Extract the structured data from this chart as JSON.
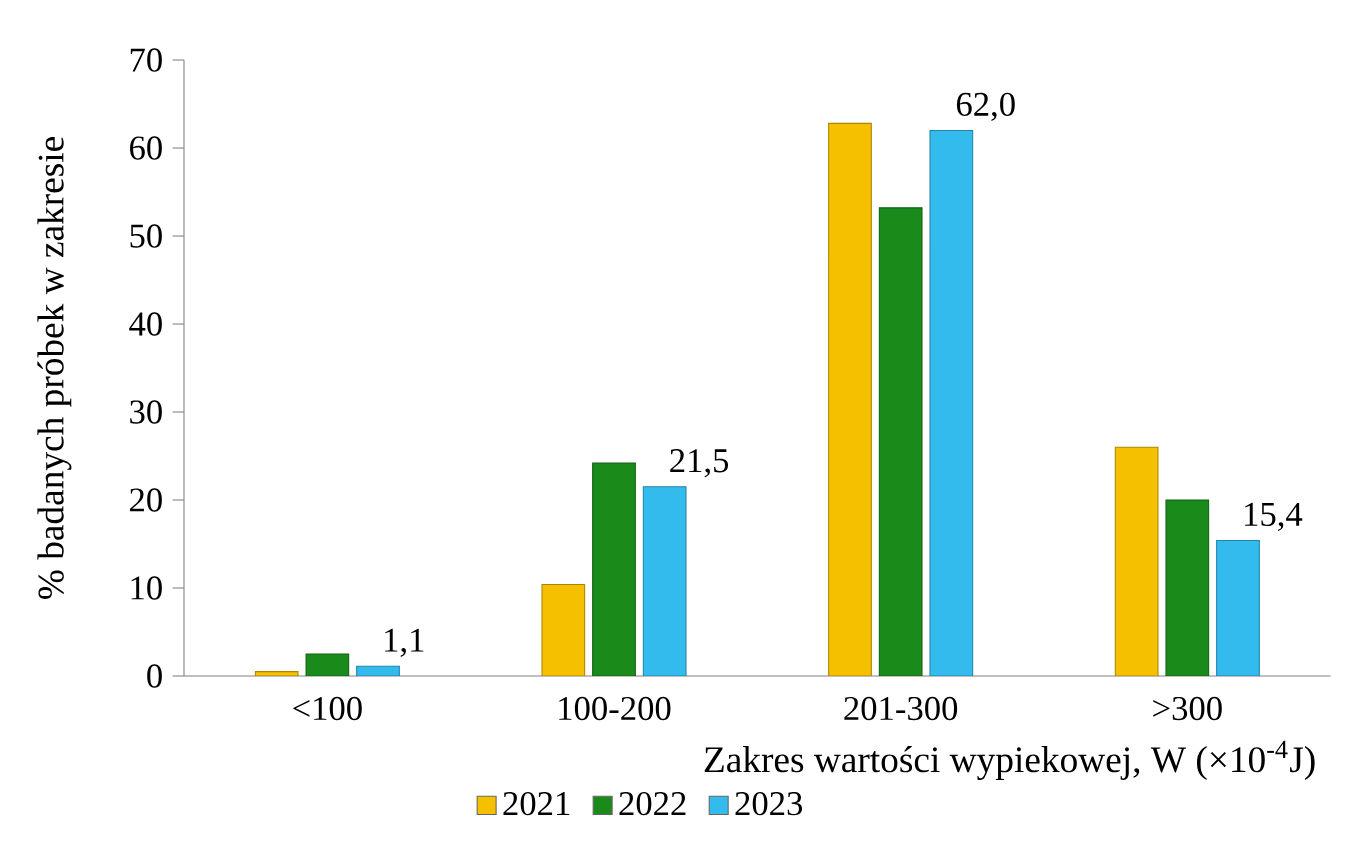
{
  "chart_data": {
    "type": "bar",
    "xlabel": "Zakres wartości wypiekowej, W (×10$^{-4}$J)",
    "ylabel": "% badanych próbek w zakresie",
    "categories": [
      "<100",
      "100-200",
      "201-300",
      ">300"
    ],
    "series": [
      {
        "name": "2021",
        "color": "#f5c000",
        "values": [
          0.5,
          10.4,
          62.8,
          26.0
        ]
      },
      {
        "name": "2022",
        "color": "#1a8a1a",
        "values": [
          2.5,
          24.2,
          53.2,
          20.0
        ]
      },
      {
        "name": "2023",
        "color": "#33bbee",
        "values": [
          1.1,
          21.5,
          62.0,
          15.4
        ],
        "value_labels": [
          "1,1",
          "21,5",
          "62,0",
          "15,4"
        ]
      }
    ],
    "ylim": [
      0,
      70
    ],
    "yticks": [
      0,
      10,
      20,
      30,
      40,
      50,
      60,
      70
    ],
    "grid": false,
    "legend": "bottom"
  }
}
